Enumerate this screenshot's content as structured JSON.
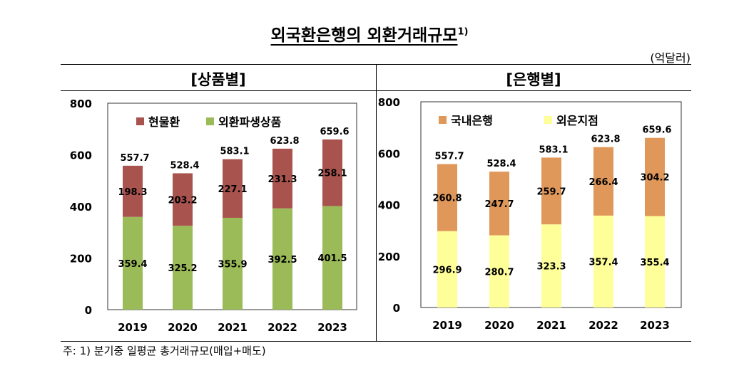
{
  "title": "외국환은행의 외환거래규모",
  "title_note": "1)",
  "unit": "(억달러)",
  "footnote": "주: 1) 분기중 일평균 총거래규모(매입+매도)",
  "chart_data": [
    {
      "type": "bar",
      "stacked": true,
      "section_title": "[상품별]",
      "categories": [
        "2019",
        "2020",
        "2021",
        "2022",
        "2023"
      ],
      "ylim": [
        0,
        800
      ],
      "yticks": [
        0,
        200,
        400,
        600,
        800
      ],
      "legend_position": "top",
      "series": [
        {
          "name": "외환파생상품",
          "color": "#9bbb59",
          "values": [
            359.4,
            325.2,
            355.9,
            392.5,
            401.5
          ]
        },
        {
          "name": "현물환",
          "color": "#a9534f",
          "values": [
            198.3,
            203.2,
            227.1,
            231.3,
            258.1
          ]
        }
      ],
      "totals": [
        557.7,
        528.4,
        583.1,
        623.8,
        659.6
      ]
    },
    {
      "type": "bar",
      "stacked": true,
      "section_title": "[은행별]",
      "categories": [
        "2019",
        "2020",
        "2021",
        "2022",
        "2023"
      ],
      "ylim": [
        0,
        800
      ],
      "yticks": [
        0,
        200,
        400,
        600,
        800
      ],
      "legend_position": "top",
      "series": [
        {
          "name": "외은지점",
          "color": "#ffff99",
          "values": [
            296.9,
            280.7,
            323.3,
            357.4,
            355.4
          ]
        },
        {
          "name": "국내은행",
          "color": "#e0985a",
          "values": [
            260.8,
            247.7,
            259.7,
            266.4,
            304.2
          ]
        }
      ],
      "totals": [
        557.7,
        528.4,
        583.1,
        623.8,
        659.6
      ]
    }
  ]
}
